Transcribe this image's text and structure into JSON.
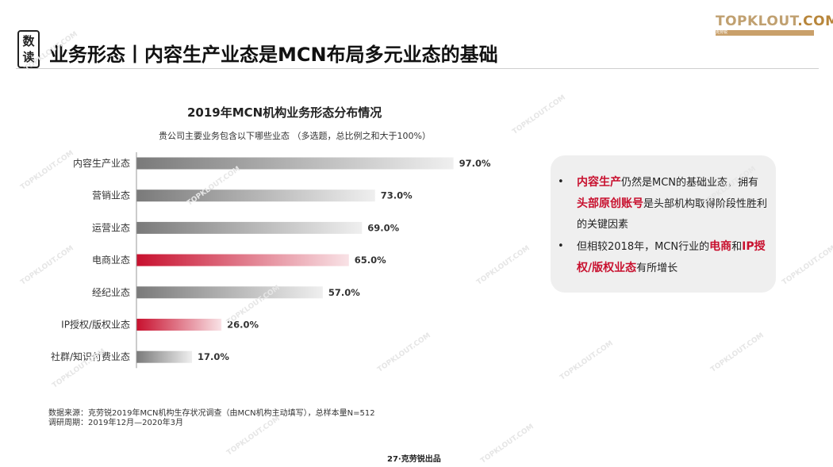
{
  "header": {
    "badge_top": "数",
    "badge_bottom": "读",
    "title": "业务形态丨内容生产业态是MCN布局多元业态的基础"
  },
  "logo": {
    "brand_prefix": "TOPKLOUT",
    "brand_suffix": ".COM",
    "tagline": "克劳锐"
  },
  "chart_data": {
    "type": "bar",
    "orientation": "horizontal",
    "title": "2019年MCN机构业务形态分布情况",
    "subtitle": "贵公司主要业务包含以下哪些业态 （多选题，总比例之和大于100%）",
    "categories": [
      "内容生产业态",
      "营销业态",
      "运营业态",
      "电商业态",
      "经纪业态",
      "IP授权/版权业态",
      "社群/知识付费业态"
    ],
    "values": [
      97.0,
      73.0,
      69.0,
      65.0,
      57.0,
      26.0,
      17.0
    ],
    "value_labels": [
      "97.0%",
      "73.0%",
      "69.0%",
      "65.0%",
      "57.0%",
      "26.0%",
      "17.0%"
    ],
    "highlight": [
      false,
      false,
      false,
      true,
      false,
      true,
      false
    ],
    "xlim": [
      0,
      100
    ],
    "grid": false,
    "legend": "none",
    "colors": {
      "normal": "#7a7a7a",
      "highlight": "#c8102e"
    }
  },
  "insights": {
    "b1_red1": "内容生产",
    "b1_text1": "仍然是MCN的基础业态，拥有",
    "b1_red2": "头部原创账号",
    "b1_text2": "是头部机构取得阶段性胜利的关键因素",
    "b2_text1": "但相较2018年，MCN行业的",
    "b2_red1": "电商",
    "b2_text2": "和",
    "b2_red2": "IP授权/版权业态",
    "b2_text3": "有所增长",
    "bullet": "•"
  },
  "source": {
    "line1": "数据来源：克劳锐2019年MCN机构生存状况调查（由MCN机构主动填写），总样本量N=512",
    "line2": "调研周期：2019年12月—2020年3月"
  },
  "footer": {
    "page": "27·克劳锐出品"
  },
  "watermark": "TOPKLOUT.COM"
}
